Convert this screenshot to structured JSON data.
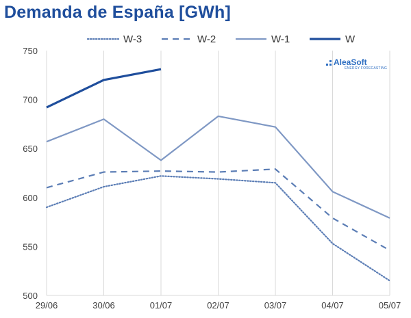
{
  "chart_data": {
    "type": "line",
    "title": "Demanda de España [GWh]",
    "xlabel": "",
    "ylabel": "",
    "categories": [
      "29/06",
      "30/06",
      "01/07",
      "02/07",
      "03/07",
      "04/07",
      "05/07"
    ],
    "ylim": [
      500,
      750
    ],
    "yticks": [
      500,
      550,
      600,
      650,
      700,
      750
    ],
    "grid": "vertical",
    "legend_position": "top",
    "series": [
      {
        "name": "W-3",
        "style": "dotted",
        "color": "#5b7db5",
        "values": [
          590,
          611,
          622,
          619,
          615,
          553,
          515
        ]
      },
      {
        "name": "W-2",
        "style": "dashed",
        "color": "#5b7db5",
        "values": [
          610,
          626,
          627,
          626,
          629,
          579,
          546
        ]
      },
      {
        "name": "W-1",
        "style": "solid",
        "color": "#7f98c4",
        "values": [
          657,
          680,
          638,
          683,
          672,
          606,
          579
        ]
      },
      {
        "name": "W",
        "style": "solid-bold",
        "color": "#1f4e9c",
        "values": [
          692,
          720,
          731,
          null,
          null,
          null,
          null
        ]
      }
    ]
  },
  "logo": {
    "name": "AleaSoft",
    "tagline": "ENERGY FORECASTING"
  }
}
